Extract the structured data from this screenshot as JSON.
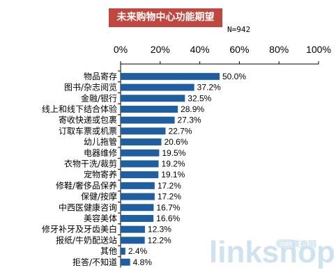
{
  "chart_data": {
    "type": "bar",
    "orientation": "horizontal",
    "title": "未来购物中心功能期望",
    "note": "N=942",
    "categories": [
      "物品寄存",
      "图书/杂志阅览",
      "金融/银行",
      "线上和线下结合体验",
      "寄收快递或包裹",
      "订取车票或机票",
      "幼儿拖管",
      "电器维修",
      "衣物干洗/裁剪",
      "宠物寄养",
      "修鞋/奢侈品保养",
      "保健/按摩",
      "中西医健康咨询",
      "美容美体",
      "修牙补牙及牙齿美白",
      "报纸/牛奶配送站",
      "其他",
      "拒答/不知道"
    ],
    "values": [
      50.0,
      37.2,
      32.5,
      28.9,
      27.3,
      22.7,
      20.6,
      19.5,
      19.2,
      19.1,
      17.2,
      17.2,
      16.7,
      16.6,
      12.3,
      12.2,
      2.4,
      4.8
    ],
    "value_labels": [
      "50.0%",
      "37.2%",
      "32.5%",
      "28.9%",
      "27.3%",
      "22.7%",
      "20.6%",
      "19.5%",
      "19.2%",
      "19.1%",
      "17.2%",
      "17.2%",
      "16.7%",
      "16.6%",
      "12.3%",
      "12.2%",
      "2.4%",
      "4.8%"
    ],
    "xlim": [
      0,
      100
    ],
    "ticks": [
      0,
      20,
      40,
      60,
      80,
      100
    ],
    "tick_labels": [
      "0%",
      "20%",
      "40%",
      "60%",
      "80%",
      "100%"
    ],
    "bar_color": "#1f5f9f",
    "title_bg": "#c0473f",
    "grid": false
  },
  "watermark": {
    "text": "linkshop",
    "com": ".com",
    "cn": "联商网"
  }
}
